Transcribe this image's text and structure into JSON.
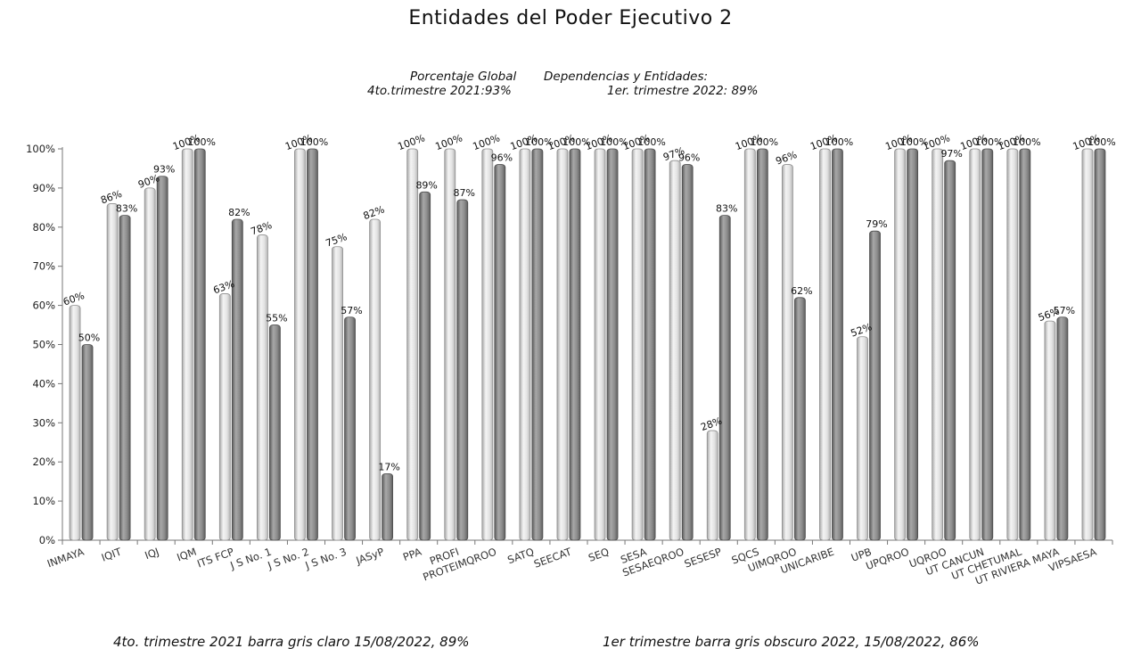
{
  "title": "Entidades del Poder Ejecutivo 2",
  "subtitle_line1_a": "Porcentaje Global",
  "subtitle_line1_b": "Dependencias y Entidades:",
  "subtitle_line2_a": "4to.trimestre 2021:93%",
  "subtitle_line2_b": "1er. trimestre 2022: 89%",
  "footnote_left": "4to. trimestre 2021 barra gris claro 15/08/2022, 89%",
  "footnote_right": "1er trimestre barra gris obscuro  2022,  15/08/2022, 86%",
  "colors": {
    "series_light": "#dcdcdc",
    "series_dark": "#8a8a8a",
    "axis": "#777777",
    "background": "#ffffff"
  },
  "chart_data": {
    "type": "bar",
    "title": "Entidades del Poder Ejecutivo 2",
    "xlabel": "",
    "ylabel": "",
    "ylim": [
      0,
      100
    ],
    "y_ticks": [
      "0%",
      "10%",
      "20%",
      "30%",
      "40%",
      "50%",
      "60%",
      "70%",
      "80%",
      "90%",
      "100%"
    ],
    "grid": false,
    "legend": "none",
    "categories": [
      "INMAYA",
      "IQIT",
      "IQJ",
      "IQM",
      "ITS FCP",
      "J S No. 1",
      "J S No. 2",
      "J S No. 3",
      "JASyP",
      "PPA",
      "PROFI",
      "PROTEIMQROO",
      "SATQ",
      "SEECAT",
      "SEQ",
      "SESA",
      "SESAEQROO",
      "SESESP",
      "SQCS",
      "UIMQROO",
      "UNICARIBE",
      "UPB",
      "UPQROO",
      "UQROO",
      "UT CANCUN",
      "UT CHETUMAL",
      "UT RIVIERA MAYA",
      "VIPSAESA"
    ],
    "series": [
      {
        "values": [
          60,
          86,
          90,
          100,
          63,
          78,
          100,
          75,
          82,
          100,
          100,
          100,
          100,
          100,
          100,
          100,
          97,
          28,
          100,
          96,
          100,
          52,
          100,
          100,
          100,
          100,
          56,
          100
        ]
      },
      {
        "values": [
          50,
          83,
          93,
          100,
          82,
          55,
          100,
          57,
          17,
          89,
          87,
          96,
          100,
          100,
          100,
          100,
          96,
          83,
          100,
          62,
          100,
          79,
          100,
          97,
          100,
          100,
          57,
          100
        ]
      }
    ]
  }
}
